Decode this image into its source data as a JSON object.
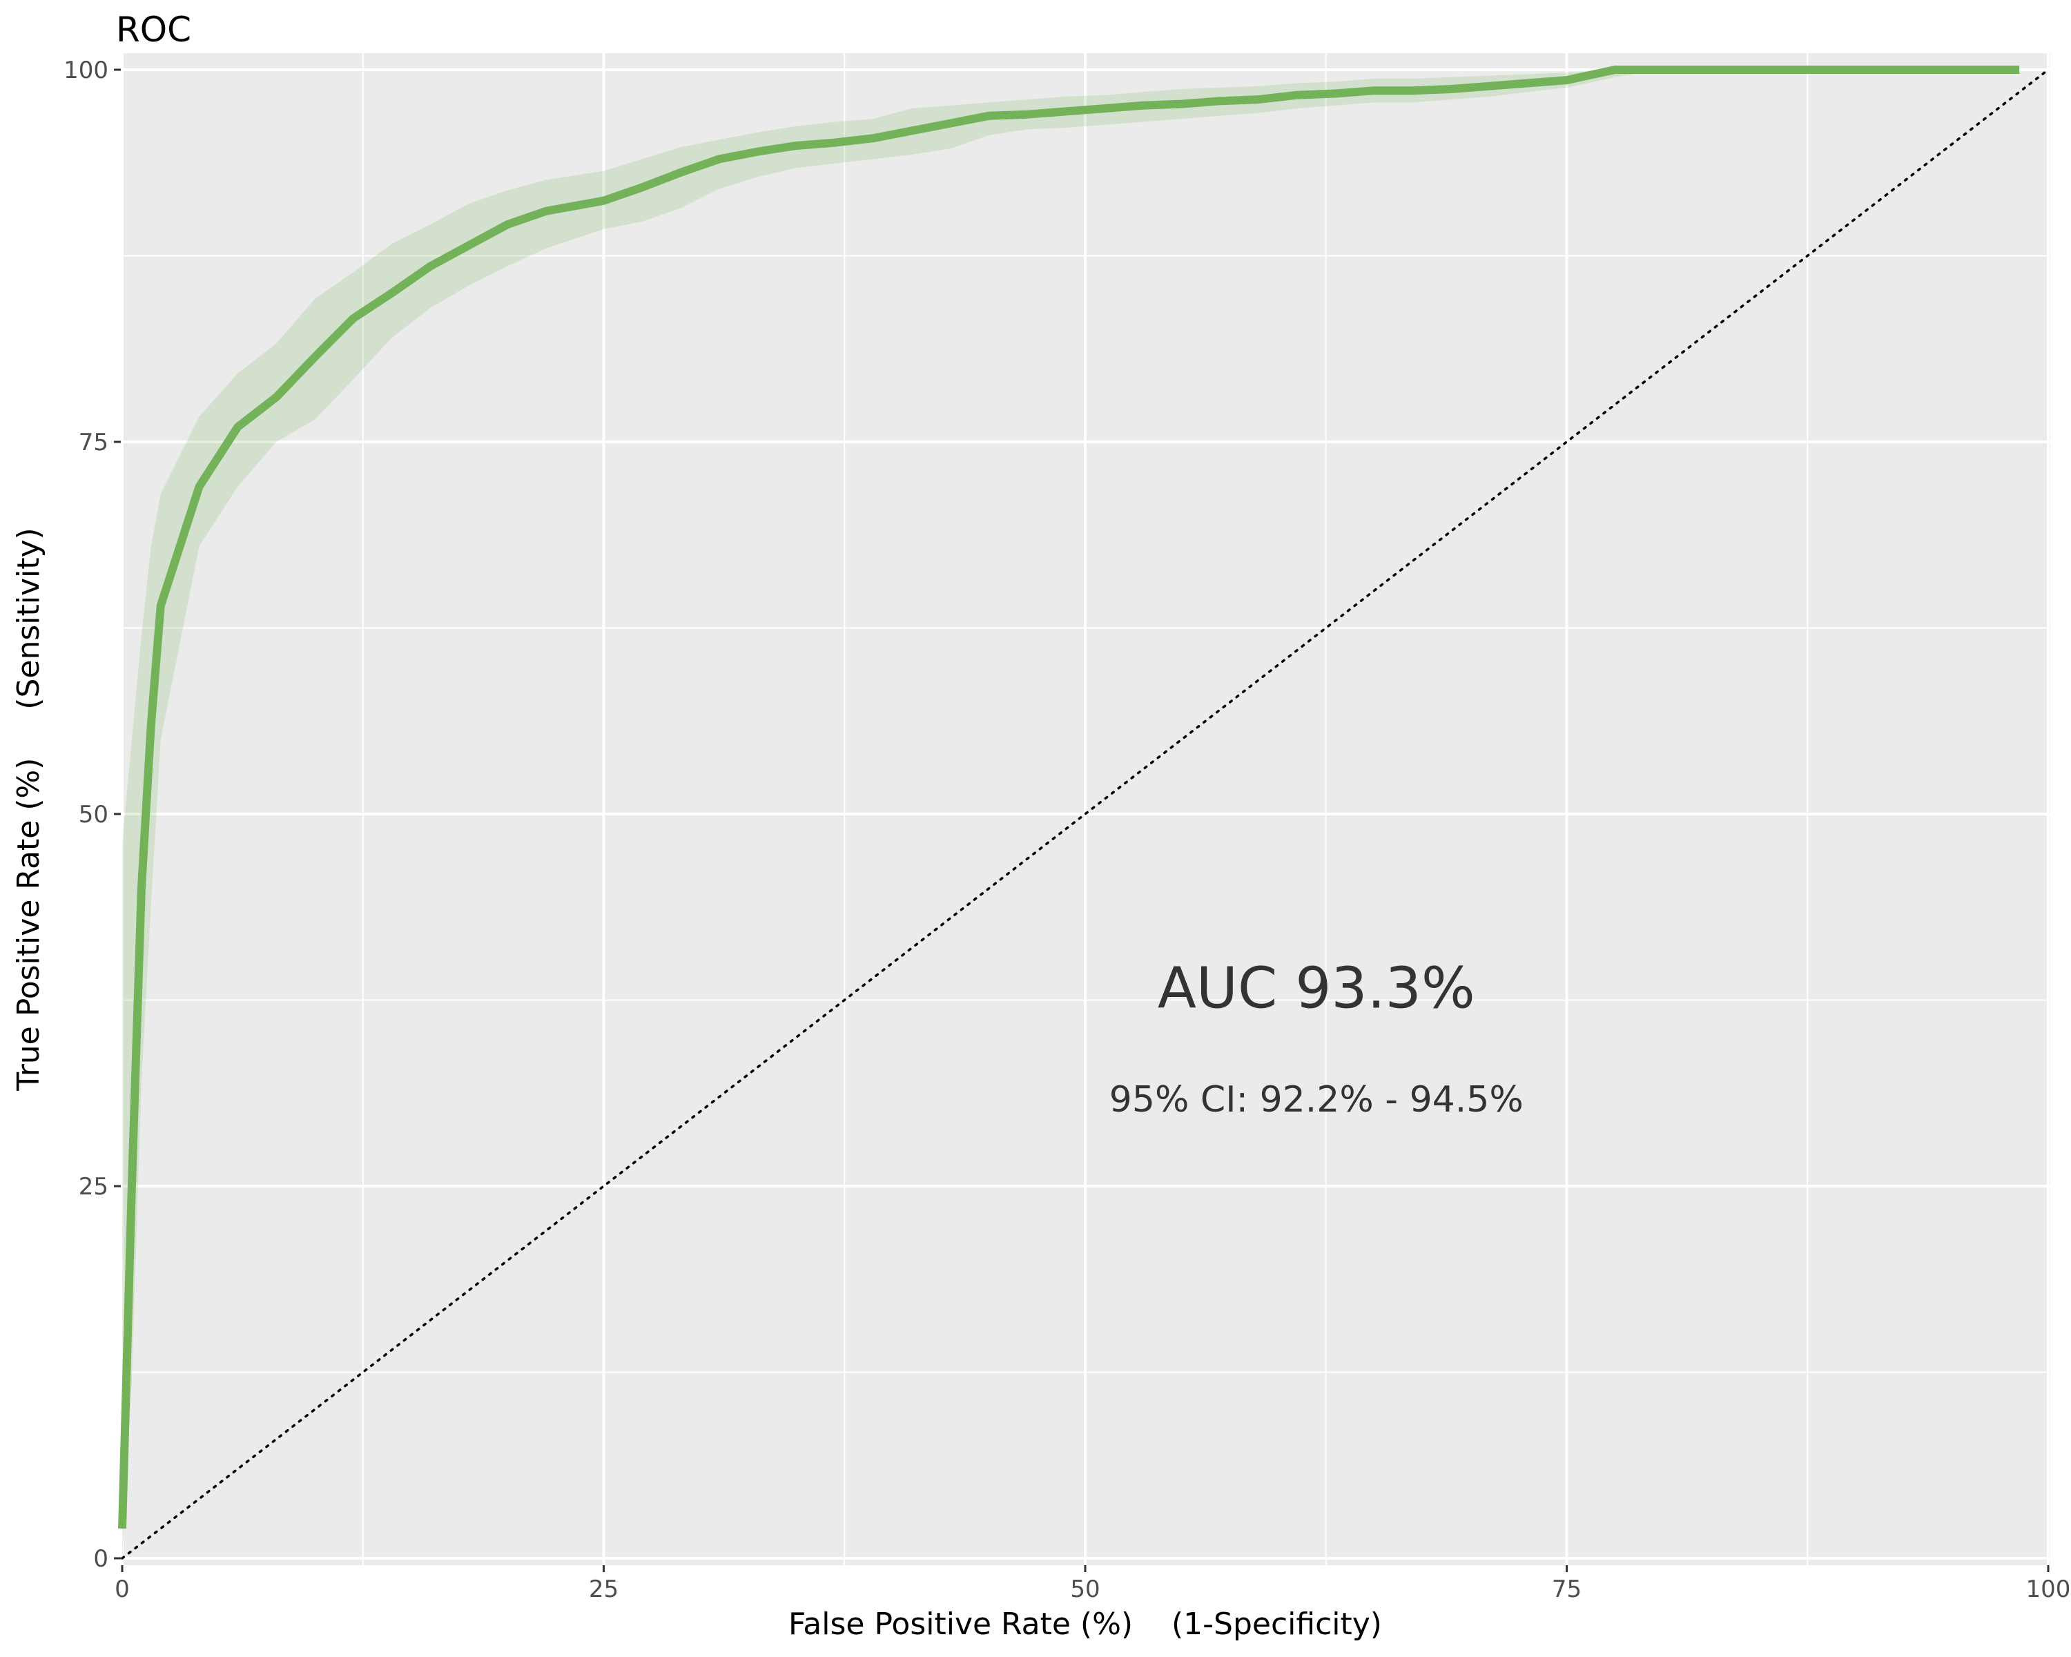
{
  "chart_data": {
    "type": "line",
    "title": "ROC",
    "xlabel": "False Positive Rate (%)    (1-Specificity)",
    "ylabel": "True Positive Rate (%)     (Sensitivity)",
    "xlim": [
      0,
      100
    ],
    "ylim": [
      0,
      100
    ],
    "x_ticks": [
      0,
      25,
      50,
      75,
      100
    ],
    "y_ticks": [
      0,
      25,
      50,
      75,
      100
    ],
    "grid": true,
    "colors": {
      "panel": "#ebebeb",
      "grid": "#ffffff",
      "line": "#74b25a",
      "band": "#74b25a",
      "diagonal": "#000000"
    },
    "series": [
      {
        "type": "line",
        "x": [
          0,
          0.5,
          1.0,
          1.5,
          2,
          4,
          6,
          8,
          10,
          12,
          14,
          16,
          18,
          20,
          22,
          25,
          27,
          29,
          31,
          33,
          35,
          37,
          39,
          41,
          43,
          45,
          47,
          49,
          51,
          53,
          55,
          57,
          59,
          61,
          63,
          65,
          67,
          69,
          71,
          73,
          75,
          77.5,
          80,
          82,
          84,
          86,
          88,
          90,
          92,
          94,
          96,
          98.5
        ],
        "y": [
          2,
          25,
          45,
          56,
          64,
          72,
          76,
          78,
          80.7,
          83.3,
          85,
          86.8,
          88.2,
          89.6,
          90.5,
          91.2,
          92.1,
          93.1,
          94,
          94.5,
          94.9,
          95.1,
          95.4,
          95.9,
          96.4,
          96.9,
          97,
          97.2,
          97.4,
          97.6,
          97.7,
          97.9,
          98,
          98.3,
          98.4,
          98.6,
          98.6,
          98.7,
          98.9,
          99.1,
          99.3,
          100,
          100,
          100,
          100,
          100,
          100,
          100,
          100,
          100,
          100,
          100
        ],
        "lower": [
          0,
          12,
          32,
          44,
          55,
          68,
          72,
          75,
          76.5,
          79.2,
          82,
          84,
          85.5,
          86.8,
          88,
          89.3,
          89.8,
          90.7,
          92,
          92.8,
          93.4,
          93.7,
          94,
          94.3,
          94.7,
          95.6,
          96,
          96.1,
          96.3,
          96.5,
          96.7,
          96.9,
          97.1,
          97.4,
          97.6,
          97.8,
          97.8,
          98,
          98.2,
          98.5,
          98.8,
          99.5,
          100,
          100,
          100,
          100,
          100,
          100,
          100,
          100,
          100,
          100
        ],
        "upper": [
          48,
          55,
          62,
          68,
          71.5,
          76.7,
          79.6,
          81.6,
          84.6,
          86.4,
          88.3,
          89.6,
          91,
          91.9,
          92.6,
          93.2,
          94,
          94.8,
          95.3,
          95.8,
          96.2,
          96.5,
          96.7,
          97.4,
          97.6,
          97.8,
          98,
          98.2,
          98.3,
          98.5,
          98.7,
          98.8,
          98.9,
          99.1,
          99.2,
          99.4,
          99.4,
          99.5,
          99.6,
          99.7,
          99.8,
          100,
          100,
          100,
          100,
          100,
          100,
          100,
          100,
          100,
          100,
          100
        ]
      },
      {
        "type": "reference-diagonal",
        "x": [
          0,
          100
        ],
        "y": [
          0,
          100
        ]
      }
    ],
    "annotations": [
      {
        "text": "AUC 93.3%",
        "x": 62,
        "y": 37
      },
      {
        "text": "95% CI: 92.2% - 94.5%",
        "x": 62,
        "y": 30
      }
    ]
  }
}
